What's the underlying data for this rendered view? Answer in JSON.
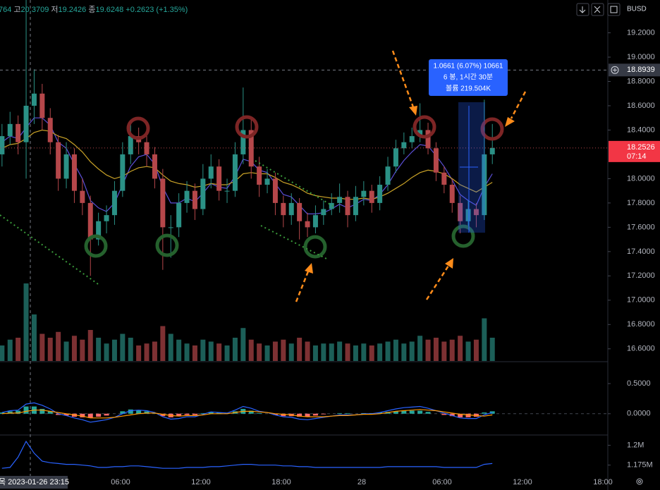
{
  "chart_data": [
    {
      "type": "candlestick",
      "symbol": "BUSD",
      "legend": [
        "764",
        "고",
        "20.3709",
        "저",
        "19.2426",
        "종",
        "19.6248",
        "+0.2623 (+1.35%)"
      ],
      "x": [
        21.15,
        21.75,
        22.35,
        22.95,
        23.55,
        24.15,
        24.75,
        25.35,
        25.95,
        26.55,
        27.15,
        27.75,
        28.35,
        28.95,
        29.55,
        30.15,
        30.75,
        31.35,
        31.95,
        32.55,
        33.15,
        33.75,
        34.35,
        34.95,
        35.55,
        36.15,
        36.75,
        37.35,
        37.95,
        38.55,
        39.15,
        39.75,
        40.35,
        40.95,
        41.55,
        42.15,
        42.75,
        43.35,
        43.95,
        44.55,
        45.15,
        45.75,
        46.35,
        46.95,
        47.55,
        48.15,
        48.75,
        49.35,
        49.95,
        50.55,
        51.15,
        51.75,
        52.35,
        52.95,
        53.55,
        54.15,
        54.75,
        55.35,
        55.95,
        56.55,
        57.15,
        57.75
      ],
      "open": [
        18.2,
        18.35,
        18.45,
        18.3,
        18.6,
        18.7,
        18.5,
        18.3,
        18.0,
        18.2,
        17.9,
        17.8,
        17.5,
        17.65,
        17.7,
        17.9,
        18.2,
        18.35,
        18.3,
        18.2,
        18.0,
        17.6,
        17.6,
        17.8,
        17.9,
        17.75,
        18.0,
        18.1,
        17.9,
        17.9,
        18.2,
        18.4,
        18.1,
        17.95,
        18.0,
        17.8,
        17.7,
        17.8,
        17.65,
        17.6,
        17.7,
        17.75,
        17.8,
        17.85,
        17.7,
        17.85,
        17.9,
        17.8,
        17.95,
        18.1,
        18.25,
        18.3,
        18.35,
        18.4,
        18.25,
        18.05,
        17.95,
        17.8,
        17.65,
        17.75,
        17.7,
        18.2
      ],
      "high": [
        18.45,
        18.55,
        18.52,
        20.37,
        18.9,
        18.78,
        18.58,
        18.36,
        18.3,
        18.25,
        18.0,
        17.86,
        17.72,
        17.78,
        17.98,
        18.3,
        18.45,
        18.42,
        18.38,
        18.26,
        18.08,
        17.7,
        17.88,
        17.98,
        17.96,
        18.12,
        18.2,
        18.16,
        18.0,
        18.3,
        18.75,
        18.5,
        18.18,
        18.08,
        18.05,
        17.86,
        17.88,
        17.84,
        17.72,
        17.78,
        17.82,
        17.88,
        17.96,
        17.9,
        17.94,
        17.98,
        17.95,
        18.02,
        18.18,
        18.32,
        18.38,
        18.42,
        18.62,
        18.46,
        18.3,
        18.1,
        18.0,
        17.86,
        17.82,
        17.8,
        18.65,
        18.45
      ],
      "low": [
        18.1,
        18.28,
        18.2,
        18.0,
        18.45,
        18.4,
        18.2,
        17.9,
        17.92,
        17.8,
        17.7,
        17.2,
        17.45,
        17.55,
        17.62,
        17.85,
        18.12,
        18.2,
        18.1,
        17.92,
        17.25,
        17.35,
        17.52,
        17.72,
        17.66,
        17.7,
        17.92,
        17.82,
        17.8,
        17.85,
        18.12,
        18.0,
        17.85,
        17.88,
        17.7,
        17.6,
        17.62,
        17.5,
        17.52,
        17.55,
        17.62,
        17.7,
        17.72,
        17.6,
        17.65,
        17.78,
        17.72,
        17.74,
        17.9,
        18.05,
        18.2,
        18.25,
        18.3,
        18.2,
        17.98,
        17.88,
        17.72,
        17.55,
        17.6,
        17.6,
        17.66,
        18.12
      ],
      "close": [
        18.35,
        18.45,
        18.3,
        18.6,
        18.7,
        18.5,
        18.3,
        18.0,
        18.2,
        17.9,
        17.8,
        17.5,
        17.65,
        17.7,
        17.9,
        18.2,
        18.35,
        18.3,
        18.2,
        18.0,
        17.6,
        17.6,
        17.8,
        17.9,
        17.75,
        18.0,
        18.1,
        17.9,
        17.9,
        18.2,
        18.4,
        18.1,
        17.95,
        18.0,
        17.8,
        17.7,
        17.8,
        17.65,
        17.6,
        17.7,
        17.75,
        17.8,
        17.85,
        17.7,
        17.85,
        17.9,
        17.8,
        17.95,
        18.1,
        18.25,
        18.3,
        18.35,
        18.4,
        18.25,
        18.05,
        17.95,
        17.8,
        17.65,
        17.75,
        17.7,
        18.2,
        18.2526
      ],
      "up_color": "#2b9186",
      "down_color": "#b5474a",
      "overlays": [
        {
          "color": "#5b4fd6",
          "values": [
            18.3,
            18.35,
            18.33,
            18.42,
            18.5,
            18.5,
            18.44,
            18.3,
            18.25,
            18.12,
            18.0,
            17.82,
            17.76,
            17.73,
            17.8,
            17.95,
            18.1,
            18.18,
            18.2,
            18.12,
            17.93,
            17.8,
            17.8,
            17.84,
            17.81,
            17.88,
            17.96,
            17.93,
            17.92,
            18.02,
            18.16,
            18.14,
            18.07,
            18.05,
            17.96,
            17.87,
            17.85,
            17.78,
            17.71,
            17.71,
            17.72,
            17.75,
            17.79,
            17.76,
            17.79,
            17.83,
            17.82,
            17.87,
            17.95,
            18.06,
            18.15,
            18.22,
            18.28,
            18.27,
            18.19,
            18.1,
            17.99,
            17.87,
            17.82,
            17.78,
            17.93,
            18.04
          ]
        },
        {
          "color": "#c9a227",
          "values": [
            18.25,
            18.28,
            18.29,
            18.33,
            18.38,
            18.4,
            18.39,
            18.35,
            18.33,
            18.28,
            18.22,
            18.14,
            18.08,
            18.03,
            18.0,
            18.02,
            18.06,
            18.09,
            18.1,
            18.09,
            18.03,
            17.98,
            17.96,
            17.95,
            17.93,
            17.94,
            17.96,
            17.95,
            17.95,
            17.98,
            18.04,
            18.05,
            18.04,
            18.04,
            18.01,
            17.97,
            17.95,
            17.92,
            17.88,
            17.86,
            17.85,
            17.84,
            17.84,
            17.83,
            17.83,
            17.84,
            17.83,
            17.85,
            17.88,
            17.92,
            17.96,
            18.01,
            18.05,
            18.07,
            18.06,
            18.04,
            18.0,
            17.95,
            17.92,
            17.89,
            17.93,
            17.97
          ]
        }
      ],
      "volume": {
        "axis": "y2",
        "up_color": "#1c5f58",
        "down_color": "#7d3133",
        "values": [
          40,
          55,
          60,
          200,
          120,
          70,
          60,
          75,
          50,
          65,
          55,
          80,
          60,
          45,
          55,
          70,
          60,
          40,
          45,
          50,
          90,
          70,
          55,
          45,
          40,
          55,
          50,
          45,
          40,
          60,
          85,
          55,
          45,
          40,
          50,
          55,
          45,
          60,
          50,
          40,
          45,
          45,
          50,
          45,
          40,
          45,
          40,
          45,
          50,
          55,
          45,
          50,
          65,
          55,
          60,
          50,
          55,
          65,
          50,
          55,
          110,
          60
        ]
      },
      "xlim": [
        21,
        66.37
      ],
      "xticks": [
        {
          "value": 30,
          "label": "06:00"
        },
        {
          "value": 36,
          "label": "12:00"
        },
        {
          "value": 42,
          "label": "18:00"
        },
        {
          "value": 48,
          "label": "28"
        },
        {
          "value": 54,
          "label": "06:00"
        },
        {
          "value": 60,
          "label": "12:00"
        },
        {
          "value": 66,
          "label": "18:00"
        }
      ],
      "ylim": [
        16.5,
        19.47
      ],
      "y2lim": [
        0,
        200
      ],
      "yticks": [
        {
          "value": 19.2,
          "label": "19.2000"
        },
        {
          "value": 19.0,
          "label": "19.0000"
        },
        {
          "value": 18.8,
          "label": "18.8000"
        },
        {
          "value": 18.6,
          "label": "18.6000"
        },
        {
          "value": 18.4,
          "label": "18.4000"
        },
        {
          "value": 18.0,
          "label": "18.0000"
        },
        {
          "value": 17.8,
          "label": "17.8000"
        },
        {
          "value": 17.6,
          "label": "17.6000"
        },
        {
          "value": 17.4,
          "label": "17.4000"
        },
        {
          "value": 17.2,
          "label": "17.2000"
        },
        {
          "value": 17.0,
          "label": "17.0000"
        },
        {
          "value": 16.8,
          "label": "16.8000"
        },
        {
          "value": 16.6,
          "label": "16.6000"
        }
      ],
      "crosshair": {
        "price": 18.8939,
        "time": "목 2023-01-26 23:15"
      },
      "last_price": 18.2526,
      "countdown": "07:14",
      "measure": [
        "1.0661 (6.07%) 10661",
        "6 봉, 1시간 30분",
        "볼륨 219.504K"
      ]
    },
    {
      "type": "macd",
      "histogram": {
        "up_color": "#26a69a",
        "down_color": "#ff6b6b",
        "values": [
          0.02,
          0.04,
          0.05,
          0.12,
          0.12,
          0.08,
          0.04,
          -0.02,
          -0.03,
          -0.05,
          -0.06,
          -0.07,
          -0.05,
          -0.03,
          0.0,
          0.04,
          0.07,
          0.06,
          0.04,
          0.01,
          -0.04,
          -0.06,
          -0.04,
          -0.02,
          -0.02,
          0.01,
          0.03,
          0.02,
          0.01,
          0.04,
          0.08,
          0.05,
          0.01,
          0.0,
          -0.02,
          -0.04,
          -0.04,
          -0.05,
          -0.05,
          -0.03,
          -0.01,
          0.0,
          0.01,
          0.01,
          0.0,
          0.01,
          0.01,
          0.02,
          0.03,
          0.04,
          0.05,
          0.05,
          0.05,
          0.03,
          0.0,
          -0.02,
          -0.04,
          -0.06,
          -0.06,
          -0.05,
          0.02,
          0.04
        ]
      },
      "series": [
        {
          "color": "#2962ff",
          "values": [
            0.02,
            0.05,
            0.06,
            0.16,
            0.18,
            0.14,
            0.08,
            0.0,
            -0.03,
            -0.07,
            -0.1,
            -0.14,
            -0.12,
            -0.1,
            -0.06,
            0.0,
            0.05,
            0.06,
            0.05,
            0.02,
            -0.05,
            -0.09,
            -0.08,
            -0.05,
            -0.05,
            -0.01,
            0.03,
            0.02,
            0.01,
            0.06,
            0.12,
            0.09,
            0.04,
            0.02,
            -0.02,
            -0.05,
            -0.06,
            -0.09,
            -0.1,
            -0.08,
            -0.06,
            -0.04,
            -0.02,
            -0.02,
            -0.02,
            0.0,
            0.0,
            0.02,
            0.05,
            0.08,
            0.1,
            0.11,
            0.12,
            0.09,
            0.05,
            0.01,
            -0.03,
            -0.07,
            -0.08,
            -0.08,
            -0.02,
            0.02
          ]
        },
        {
          "color": "#ff9800",
          "values": [
            0.0,
            0.01,
            0.01,
            0.04,
            0.06,
            0.06,
            0.04,
            0.02,
            0.0,
            -0.02,
            -0.04,
            -0.07,
            -0.07,
            -0.07,
            -0.06,
            -0.04,
            -0.02,
            0.0,
            0.01,
            0.01,
            -0.01,
            -0.03,
            -0.04,
            -0.03,
            -0.03,
            -0.02,
            0.0,
            0.0,
            0.0,
            0.02,
            0.04,
            0.04,
            0.03,
            0.02,
            0.0,
            -0.01,
            -0.02,
            -0.04,
            -0.05,
            -0.05,
            -0.05,
            -0.04,
            -0.03,
            -0.03,
            -0.02,
            -0.01,
            -0.01,
            0.0,
            0.02,
            0.04,
            0.05,
            0.06,
            0.07,
            0.06,
            0.05,
            0.03,
            0.01,
            -0.01,
            -0.02,
            -0.03,
            -0.04,
            -0.02
          ]
        }
      ],
      "ylim": [
        -0.33,
        0.84
      ],
      "yticks": [
        {
          "value": 0.5,
          "label": "0.5000"
        },
        {
          "value": 0,
          "label": "0.0000"
        }
      ]
    },
    {
      "type": "line",
      "series": [
        {
          "color": "#2962ff",
          "values": [
            1.171,
            1.172,
            1.185,
            1.205,
            1.19,
            1.18,
            1.178,
            1.177,
            1.176,
            1.176,
            1.175,
            1.174,
            1.172,
            1.172,
            1.173,
            1.173,
            1.174,
            1.174,
            1.173,
            1.172,
            1.171,
            1.171,
            1.171,
            1.172,
            1.172,
            1.172,
            1.173,
            1.173,
            1.174,
            1.175,
            1.176,
            1.176,
            1.175,
            1.175,
            1.175,
            1.174,
            1.174,
            1.173,
            1.173,
            1.172,
            1.172,
            1.172,
            1.172,
            1.172,
            1.172,
            1.172,
            1.172,
            1.172,
            1.173,
            1.173,
            1.173,
            1.173,
            1.173,
            1.173,
            1.173,
            1.172,
            1.172,
            1.172,
            1.172,
            1.172,
            1.176,
            1.177
          ]
        }
      ],
      "ylim": [
        1.148,
        1.213
      ],
      "yticks": [
        {
          "value": 1.2,
          "label": "1.2M"
        },
        {
          "value": 1.175,
          "label": "1.175M"
        }
      ]
    }
  ]
}
